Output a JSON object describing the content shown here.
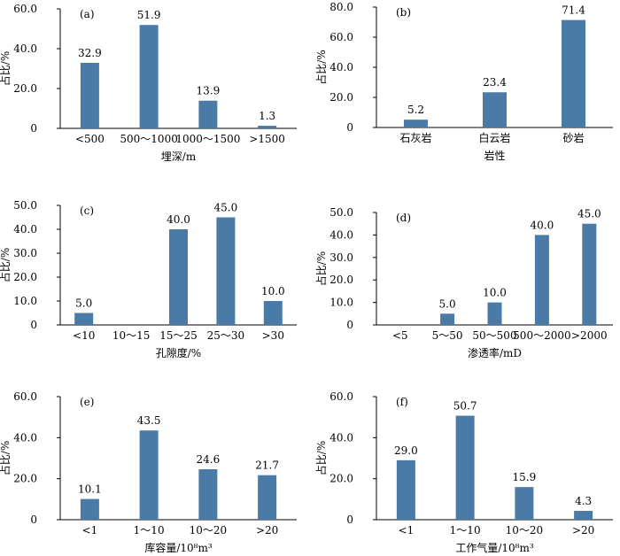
{
  "chart_data": [
    {
      "type": "bar",
      "panel": "(a)",
      "categories": [
        "<500",
        "500～1000",
        "1000～1500",
        ">1500"
      ],
      "values": [
        32.9,
        51.9,
        13.9,
        1.3
      ],
      "xlabel": "埋深/m",
      "ylabel": "占比/%",
      "ylim": [
        0,
        60
      ],
      "yticks": [
        "0",
        "20.0",
        "40.0",
        "60.0"
      ]
    },
    {
      "type": "bar",
      "panel": "(b)",
      "categories": [
        "石灰岩",
        "白云岩",
        "砂岩"
      ],
      "values": [
        5.2,
        23.4,
        71.4
      ],
      "xlabel": "岩性",
      "ylabel": "占比/%",
      "ylim": [
        0,
        80
      ],
      "yticks": [
        "0",
        "20.0",
        "40.0",
        "60.0",
        "80.0"
      ]
    },
    {
      "type": "bar",
      "panel": "(c)",
      "categories": [
        "<10",
        "10～15",
        "15～25",
        "25～30",
        ">30"
      ],
      "values": [
        5.0,
        null,
        40.0,
        45.0,
        10.0
      ],
      "xlabel": "孔隙度/%",
      "ylabel": "占比/%",
      "ylim": [
        0,
        50
      ],
      "yticks": [
        "0",
        "10.0",
        "20.0",
        "30.0",
        "40.0",
        "50.0"
      ]
    },
    {
      "type": "bar",
      "panel": "(d)",
      "categories": [
        "<5",
        "5～50",
        "50～500",
        "500～2000",
        ">2000"
      ],
      "values": [
        null,
        5.0,
        10.0,
        40.0,
        45.0
      ],
      "xlabel": "渗透率/mD",
      "ylabel": "占比/%",
      "ylim": [
        0,
        50
      ],
      "yticks": [
        "0",
        "10.0",
        "20.0",
        "30.0",
        "40.0",
        "50.0"
      ]
    },
    {
      "type": "bar",
      "panel": "(e)",
      "categories": [
        "<1",
        "1～10",
        "10～20",
        ">20"
      ],
      "values": [
        10.1,
        43.5,
        24.6,
        21.7
      ],
      "xlabel": "库容量/10⁸m³",
      "ylabel": "占比/%",
      "ylim": [
        0,
        60
      ],
      "yticks": [
        "0",
        "20.0",
        "40.0",
        "60.0"
      ]
    },
    {
      "type": "bar",
      "panel": "(f)",
      "categories": [
        "<1",
        "1～10",
        "10～20",
        ">20"
      ],
      "values": [
        29.0,
        50.7,
        15.9,
        4.3
      ],
      "xlabel": "工作气量/10⁸m³",
      "ylabel": "占比/%",
      "ylim": [
        0,
        60
      ],
      "yticks": [
        "0",
        "20.0",
        "40.0",
        "60.0"
      ]
    }
  ],
  "colors": {
    "bar": "#4a7ba6",
    "axis": "#000000"
  }
}
